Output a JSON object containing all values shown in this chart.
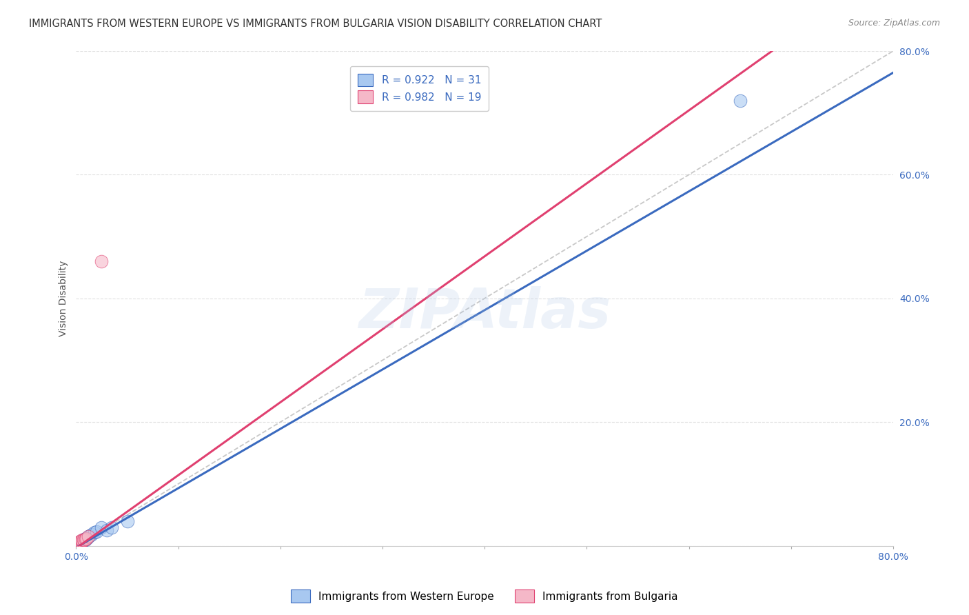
{
  "title": "IMMIGRANTS FROM WESTERN EUROPE VS IMMIGRANTS FROM BULGARIA VISION DISABILITY CORRELATION CHART",
  "source": "Source: ZipAtlas.com",
  "ylabel": "Vision Disability",
  "xlim": [
    0,
    0.8
  ],
  "ylim": [
    0,
    0.8
  ],
  "xticks": [
    0.0,
    0.1,
    0.2,
    0.3,
    0.4,
    0.5,
    0.6,
    0.7,
    0.8
  ],
  "yticks": [
    0.0,
    0.2,
    0.4,
    0.6,
    0.8
  ],
  "xtick_labels_show": [
    "0.0%",
    "",
    "",
    "",
    "",
    "",
    "",
    "",
    "80.0%"
  ],
  "ytick_labels_show": [
    "",
    "20.0%",
    "40.0%",
    "60.0%",
    "80.0%"
  ],
  "blue_color": "#a8c8f0",
  "pink_color": "#f5b8c8",
  "blue_line_color": "#3a6abf",
  "pink_line_color": "#e04070",
  "watermark": "ZIPAtlas",
  "legend_r_blue": "R = 0.922",
  "legend_n_blue": "N = 31",
  "legend_r_pink": "R = 0.982",
  "legend_n_pink": "N = 19",
  "legend_label_blue": "Immigrants from Western Europe",
  "legend_label_pink": "Immigrants from Bulgaria",
  "blue_slope": 0.96,
  "blue_intercept": -0.003,
  "pink_slope": 1.18,
  "pink_intercept": -0.004,
  "blue_x": [
    0.001,
    0.002,
    0.002,
    0.003,
    0.003,
    0.003,
    0.004,
    0.004,
    0.005,
    0.005,
    0.005,
    0.006,
    0.006,
    0.007,
    0.007,
    0.008,
    0.008,
    0.009,
    0.009,
    0.01,
    0.011,
    0.012,
    0.013,
    0.015,
    0.018,
    0.02,
    0.025,
    0.03,
    0.035,
    0.05,
    0.65
  ],
  "blue_y": [
    0.002,
    0.002,
    0.003,
    0.003,
    0.004,
    0.005,
    0.004,
    0.006,
    0.005,
    0.007,
    0.008,
    0.006,
    0.008,
    0.008,
    0.01,
    0.009,
    0.011,
    0.01,
    0.012,
    0.012,
    0.013,
    0.015,
    0.016,
    0.018,
    0.022,
    0.023,
    0.03,
    0.025,
    0.03,
    0.04,
    0.72
  ],
  "pink_x": [
    0.001,
    0.001,
    0.002,
    0.002,
    0.003,
    0.003,
    0.003,
    0.004,
    0.004,
    0.005,
    0.005,
    0.006,
    0.006,
    0.007,
    0.008,
    0.009,
    0.01,
    0.012,
    0.025
  ],
  "pink_y": [
    0.002,
    0.003,
    0.003,
    0.004,
    0.004,
    0.005,
    0.006,
    0.005,
    0.007,
    0.006,
    0.008,
    0.007,
    0.009,
    0.009,
    0.01,
    0.011,
    0.012,
    0.015,
    0.46
  ],
  "background_color": "#ffffff",
  "grid_color": "#e0e0e0",
  "axis_label_color": "#3a6abf",
  "title_color": "#333333",
  "title_fontsize": 10.5,
  "axis_fontsize": 10
}
